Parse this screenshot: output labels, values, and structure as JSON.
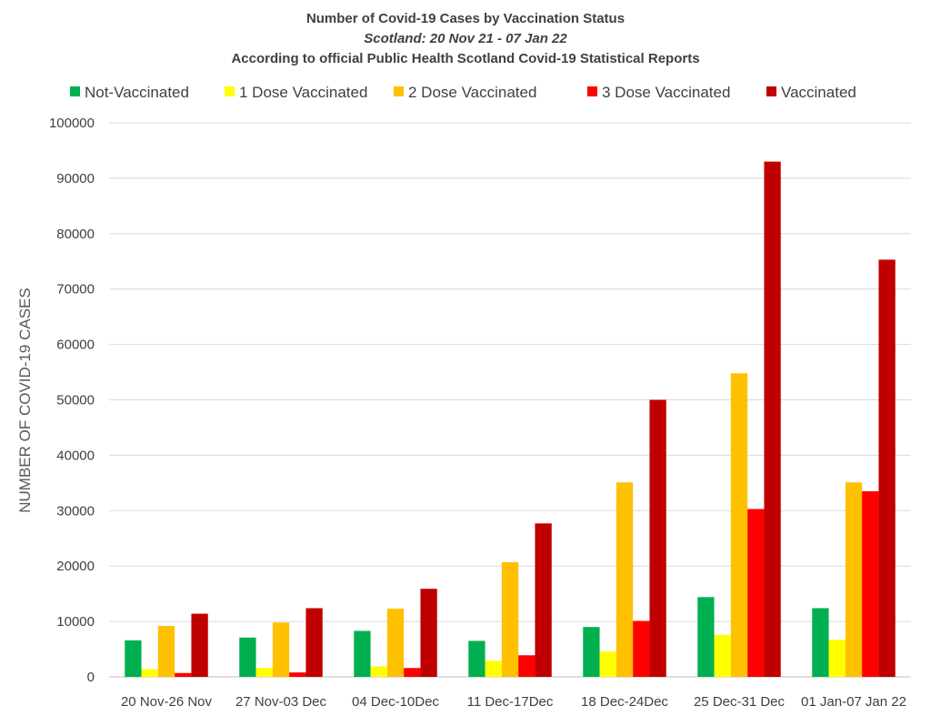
{
  "chart_data": {
    "type": "bar",
    "title": "Number of Covid-19 Cases by Vaccination Status",
    "subtitle": "Scotland: 20 Nov 21 - 07 Jan 22",
    "subtitle2": "According to official Public Health Scotland Covid-19 Statistical Reports",
    "xlabel": "",
    "ylabel": "NUMBER OF COVID-19 CASES",
    "ylim": [
      0,
      100000
    ],
    "yticks": [
      "0",
      "10000",
      "20000",
      "30000",
      "40000",
      "50000",
      "60000",
      "70000",
      "80000",
      "90000",
      "100000"
    ],
    "grid": true,
    "legend_position": "top",
    "categories": [
      "20 Nov-26 Nov",
      "27 Nov-03 Dec",
      "04 Dec-10Dec",
      "11 Dec-17Dec",
      "18 Dec-24Dec",
      "25 Dec-31 Dec",
      "01 Jan-07 Jan 22"
    ],
    "series": [
      {
        "name": "Not-Vaccinated",
        "color": "#00b050",
        "values": [
          6600,
          7100,
          8300,
          6500,
          9000,
          14400,
          12400
        ]
      },
      {
        "name": "1 Dose Vaccinated",
        "color": "#ffff00",
        "values": [
          1400,
          1600,
          1900,
          2900,
          4600,
          7600,
          6700
        ]
      },
      {
        "name": "2 Dose Vaccinated",
        "color": "#ffc000",
        "values": [
          9200,
          9800,
          12300,
          20700,
          35100,
          54800,
          35100
        ]
      },
      {
        "name": "3 Dose Vaccinated",
        "color": "#ff0000",
        "values": [
          700,
          800,
          1600,
          3900,
          10100,
          30300,
          33500
        ]
      },
      {
        "name": "Vaccinated",
        "color": "#c00000",
        "values": [
          11400,
          12400,
          15900,
          27700,
          50000,
          93000,
          75300
        ]
      }
    ]
  }
}
